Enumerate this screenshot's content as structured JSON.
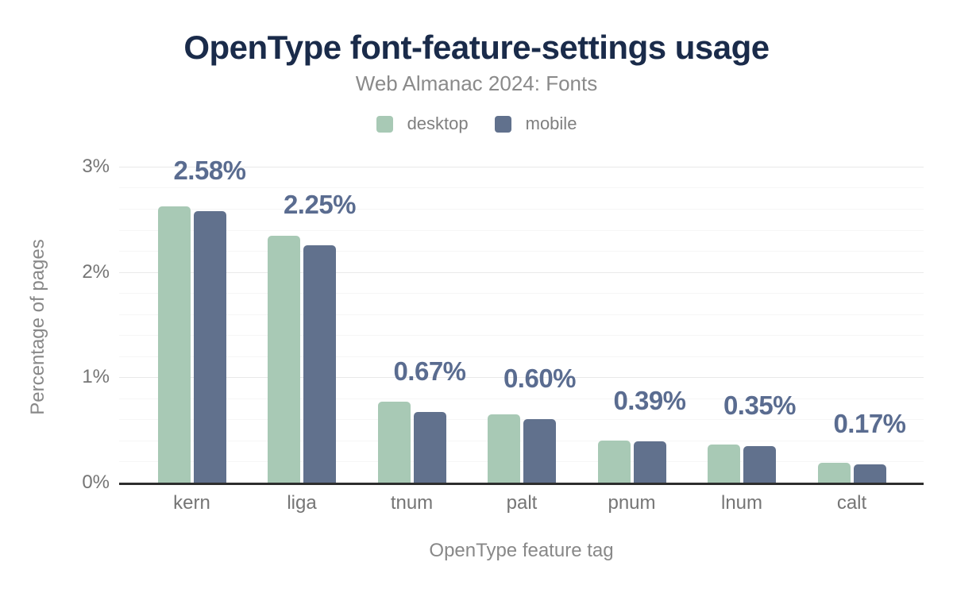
{
  "chart_data": {
    "type": "bar",
    "title": "OpenType font-feature-settings usage",
    "subtitle": "Web Almanac 2024: Fonts",
    "xlabel": "OpenType feature tag",
    "ylabel": "Percentage of pages",
    "categories": [
      "kern",
      "liga",
      "tnum",
      "palt",
      "pnum",
      "lnum",
      "calt"
    ],
    "series": [
      {
        "name": "desktop",
        "color": "#a8c9b5",
        "values": [
          2.62,
          2.34,
          0.77,
          0.65,
          0.4,
          0.36,
          0.19
        ]
      },
      {
        "name": "mobile",
        "color": "#61718d",
        "values": [
          2.58,
          2.25,
          0.67,
          0.6,
          0.39,
          0.35,
          0.17
        ]
      }
    ],
    "data_labels": {
      "over_series": "mobile",
      "values": [
        "2.58%",
        "2.25%",
        "0.67%",
        "0.60%",
        "0.39%",
        "0.35%",
        "0.17%"
      ]
    },
    "y_axis": {
      "range": [
        0,
        3
      ],
      "ticks": [
        {
          "value": 0,
          "label": "0%"
        },
        {
          "value": 1,
          "label": "1%"
        },
        {
          "value": 2,
          "label": "2%"
        },
        {
          "value": 3,
          "label": "3%"
        }
      ],
      "minor_grid_step": 0.2,
      "major_grid_step": 1
    },
    "legend_position": "top",
    "grid": true
  },
  "styles": {
    "background": "#ffffff",
    "title_color": "#1a2b4a",
    "subtitle_color": "#8a8a8a",
    "data_label_color": "#5a6c90",
    "axis_text_color": "#757575",
    "axis_title_color": "#888888",
    "legend_text_color": "#7f7f7f",
    "axis_line_color": "#2d2d2d",
    "major_grid_color": "#e9e9e9",
    "minor_grid_color": "#f6f6f6"
  }
}
